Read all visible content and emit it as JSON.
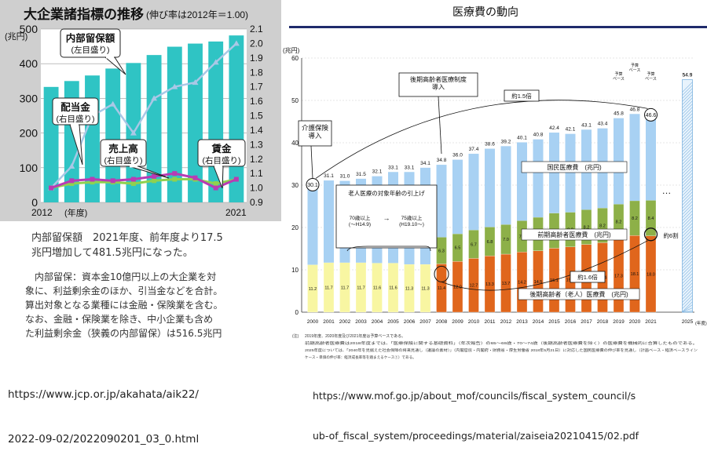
{
  "left_notes": {
    "title_line1": "内部留保額　2021年度、前年度より17.5",
    "title_line2": "兆円増加して481.5兆円になった。",
    "body": [
      "　内部留保：資本金10億円以上の大企業を対",
      "象に、利益剰余金のほか、引当金などを合計。",
      "算出対象となる業種には金融・保険業を含む。",
      "なお、金融・保険業を除き、中小企業も含め",
      "た利益剰余金（狭義の内部留保）は516.5兆円"
    ],
    "url_line1": "https://www.jcp.or.jp/akahata/aik22/",
    "url_line2": "2022-09-02/2022090201_03_0.html"
  },
  "right_notes": {
    "url_line1": "https://www.mof.go.jp/about_mof/councils/fiscal_system_council/s",
    "url_line2": "ub-of_fiscal_system/proceedings/material/zaiseia20210415/02.pdf",
    "footnote1": "2019年度、2020年度及び2021年度は予算ベースである。",
    "footnote2": "前期高齢者医療費は2018年度までは、「医療保険に関する基礎資料」（年次報告）の65〜69歳・70〜74歳（後期高齢者医療費を除く）の医療費を機械的に合算したものである。",
    "footnote3": "2025年度については、「2040年を見据えた社会保障の将来見通し（議論の素材）」（内閣官房・内閣府・財務省・厚生労働省 2018年5月21日）に対応した国民医療費の伸び率を見通し（計画ベース・経済ベースライン",
    "footnote4": "ケース・単価の伸び率：経済成長率等を踏まえるケース①）である。"
  },
  "chart_data": [
    {
      "type": "bar",
      "title": "大企業諸指標の推移",
      "subtitle": "(伸び率は2012年＝1.00)",
      "ylabel": "(兆円)",
      "xlabel_start": "2012",
      "xlabel_unit": "(年度)",
      "xlabel_end": "2021",
      "categories": [
        "2012",
        "2013",
        "2014",
        "2015",
        "2016",
        "2017",
        "2018",
        "2019",
        "2020",
        "2021"
      ],
      "ylim": [
        0,
        500
      ],
      "y2lim": [
        0.9,
        2.1
      ],
      "yticks": [
        "0",
        "100",
        "200",
        "300",
        "400",
        "500"
      ],
      "y2ticks": [
        "0.9",
        "1.0",
        "1.1",
        "1.2",
        "1.3",
        "1.4",
        "1.5",
        "1.6",
        "1.7",
        "1.8",
        "1.9",
        "2.0",
        "2.1"
      ],
      "series": [
        {
          "name": "内部留保額",
          "axis_note": "(左目盛り)",
          "kind": "bar",
          "color": "#2fc4c4",
          "values": [
            333,
            350,
            366,
            386,
            402,
            425,
            449,
            458,
            464,
            481.5
          ]
        },
        {
          "name": "配当金",
          "axis_note": "(右目盛り)",
          "kind": "line",
          "color": "#a9c8e6",
          "values": [
            1.0,
            1.15,
            1.5,
            1.58,
            1.38,
            1.62,
            1.7,
            1.73,
            1.87,
            2.0
          ]
        },
        {
          "name": "売上高",
          "axis_note": "(右目盛り)",
          "kind": "line",
          "color": "#8fd14f",
          "values": [
            1.0,
            1.03,
            1.04,
            1.04,
            1.03,
            1.05,
            1.06,
            1.06,
            1.03,
            1.06
          ]
        },
        {
          "name": "賃金",
          "axis_note": "(右目盛り)",
          "kind": "line",
          "color": "#b83bb5",
          "values": [
            1.0,
            1.05,
            1.06,
            1.05,
            1.06,
            1.08,
            1.1,
            1.07,
            1.0,
            1.06
          ]
        }
      ]
    },
    {
      "type": "bar",
      "title": "医療費の動向",
      "ylabel": "(兆円)",
      "xlabel_unit": "(年度)",
      "ylim": [
        0,
        60
      ],
      "yticks": [
        "0",
        "10",
        "20",
        "30",
        "40",
        "50",
        "60"
      ],
      "categories": [
        "2000",
        "2001",
        "2002",
        "2003",
        "2004",
        "2005",
        "2006",
        "2007",
        "2008",
        "2009",
        "2010",
        "2011",
        "2012",
        "2013",
        "2014",
        "2015",
        "2016",
        "2017",
        "2018",
        "2019",
        "2020",
        "2021",
        "2025"
      ],
      "totals": [
        "30.1",
        "31.1",
        "31.0",
        "31.5",
        "32.1",
        "33.1",
        "33.1",
        "34.1",
        "34.8",
        "36.0",
        "37.4",
        "38.6",
        "39.2",
        "40.1",
        "40.8",
        "42.4",
        "42.1",
        "43.1",
        "43.4",
        "45.8",
        "46.8",
        "46.6",
        "54.9"
      ],
      "series": [
        {
          "name": "国民医療費",
          "unit": "(兆円)",
          "color": "#a8d1f3",
          "values": [
            30.1,
            31.1,
            31.0,
            31.5,
            32.1,
            33.1,
            33.1,
            34.1,
            34.8,
            36.0,
            37.4,
            38.6,
            39.2,
            40.1,
            40.8,
            42.4,
            42.1,
            43.1,
            43.4,
            45.8,
            46.8,
            46.6,
            54.9
          ]
        },
        {
          "name": "前期高齢者医療費",
          "unit": "(兆円)",
          "color": "#8db048",
          "values": [
            null,
            null,
            null,
            null,
            null,
            null,
            null,
            null,
            6.3,
            6.5,
            6.7,
            6.8,
            7.0,
            7.4,
            7.9,
            8.3,
            8.2,
            8.2,
            8.2,
            8.2,
            8.2,
            8.4,
            null
          ],
          "labels": [
            "",
            "",
            "",
            "",
            "",
            "",
            "",
            "",
            "6.3",
            "6.5",
            "6.7",
            "6.8",
            "7.0",
            "7.4",
            "7.9",
            "8.3",
            "8.2",
            "8.2",
            "8.2",
            "8.2",
            "8.2",
            "8.4",
            ""
          ]
        },
        {
          "name": "老人医療費",
          "color": "#f8f6a2",
          "values": [
            11.2,
            11.7,
            11.7,
            11.7,
            11.6,
            11.6,
            11.3,
            11.3,
            null,
            null,
            null,
            null,
            null,
            null,
            null,
            null,
            null,
            null,
            null,
            null,
            null,
            null,
            null
          ],
          "labels": [
            "11.2",
            "11.7",
            "11.7",
            "11.7",
            "11.6",
            "11.6",
            "11.3",
            "11.3",
            "",
            "",
            "",
            "",
            "",
            "",
            "",
            "",
            "",
            "",
            "",
            "",
            "",
            "",
            ""
          ]
        },
        {
          "name": "後期高齢者（老人）医療費",
          "unit": "(兆円)",
          "color": "#e0661c",
          "values": [
            null,
            null,
            null,
            null,
            null,
            null,
            null,
            null,
            11.4,
            12.0,
            12.7,
            13.3,
            13.7,
            14.2,
            14.5,
            15.1,
            15.4,
            16.0,
            16.4,
            17.3,
            18.1,
            18.0,
            null
          ],
          "labels": [
            "",
            "",
            "",
            "",
            "",
            "",
            "",
            "",
            "11.4",
            "12.0",
            "12.7",
            "13.3",
            "13.7",
            "14.2",
            "14.5",
            "15.1",
            "15.4",
            "16.0",
            "16.4",
            "17.3",
            "18.1",
            "18.0",
            ""
          ]
        }
      ],
      "annotations": {
        "kaigo": "介護保険\n導入",
        "kouki": "後期高齢者医療制度\n導入",
        "rojin": "老人医療の対象年齢の引上げ",
        "age_range_1": "70歳以上\n(〜H14.9)",
        "arrow": "→",
        "age_range_2": "75歳以上\n(H19.10〜)",
        "x15": "約1.5倍",
        "x16": "約1.6倍",
        "about6": "約6割",
        "yosan1": "予算\nベース",
        "yosan2": "予算\nベース",
        "yosan3": "予算\nベース",
        "dots": "…"
      }
    }
  ]
}
